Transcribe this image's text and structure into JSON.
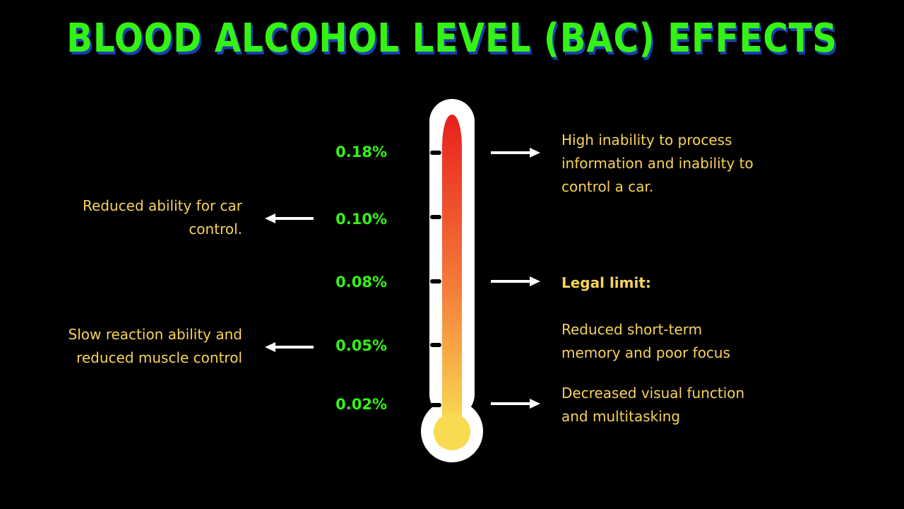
{
  "title": "BLOOD ALCOHOL LEVEL (BAC) EFFECTS",
  "levels": [
    "0.18%",
    "0.10%",
    "0.08%",
    "0.05%",
    "0.02%"
  ],
  "effects": {
    "e018": "High inability to process\ninformation and inability to\ncontrol a car.",
    "e010": "Reduced ability for car\ncontrol.",
    "e008_heading": "Legal limit:",
    "e008": "Reduced short-term\nmemory and poor focus",
    "e005": "Slow reaction ability and\nreduced muscle control",
    "e002": "Decreased visual function\nand multitasking"
  },
  "colors": {
    "title": "#34f314",
    "title_shadow": "#1b3fb0",
    "levels": "#34f314",
    "text": "#f7d35a",
    "mercury_top": "#e8201e",
    "mercury_bottom": "#f9db52"
  }
}
